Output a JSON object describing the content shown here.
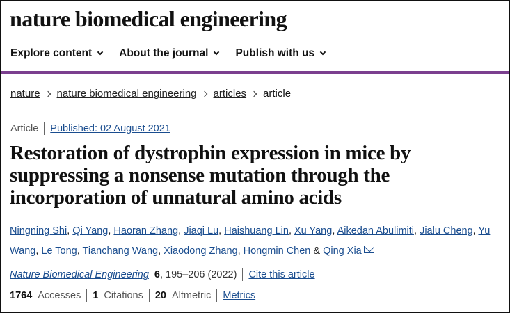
{
  "site": {
    "brand": "nature biomedical engineering"
  },
  "nav": {
    "items": [
      {
        "label": "Explore content"
      },
      {
        "label": "About the journal"
      },
      {
        "label": "Publish with us"
      }
    ]
  },
  "breadcrumb": {
    "items": [
      "nature",
      "nature biomedical engineering",
      "articles"
    ],
    "current": "article"
  },
  "article": {
    "type": "Article",
    "published": "Published: 02 August 2021",
    "title": "Restoration of dystrophin expression in mice by suppressing a nonsense mutation through the incorporation of unnatural amino acids",
    "authors": [
      "Ningning Shi",
      "Qi Yang",
      "Haoran Zhang",
      "Jiaqi Lu",
      "Haishuang Lin",
      "Xu Yang",
      "Aikedan Abulimiti",
      "Jialu Cheng",
      "Yu Wang",
      "Le Tong",
      "Tianchang Wang",
      "Xiaodong Zhang",
      "Hongmin Chen",
      "Qing Xia"
    ],
    "author_sep": ", ",
    "author_last_sep": " & ",
    "journal": "Nature Biomedical Engineering",
    "volume": "6",
    "pages_year": ", 195–206 (2022)",
    "cite_label": "Cite this article"
  },
  "metrics": {
    "accesses_count": "1764",
    "accesses_label": "Accesses",
    "citations_count": "1",
    "citations_label": "Citations",
    "altmetric_count": "20",
    "altmetric_label": "Altmetric",
    "metrics_link": "Metrics"
  },
  "colors": {
    "accent_bar": "#7b3f8f",
    "link": "#1a4d8f"
  },
  "icons": {
    "author_contact": "mail-icon",
    "nav_dropdown": "chevron-down-icon",
    "breadcrumb_sep": "chevron-right-icon"
  }
}
